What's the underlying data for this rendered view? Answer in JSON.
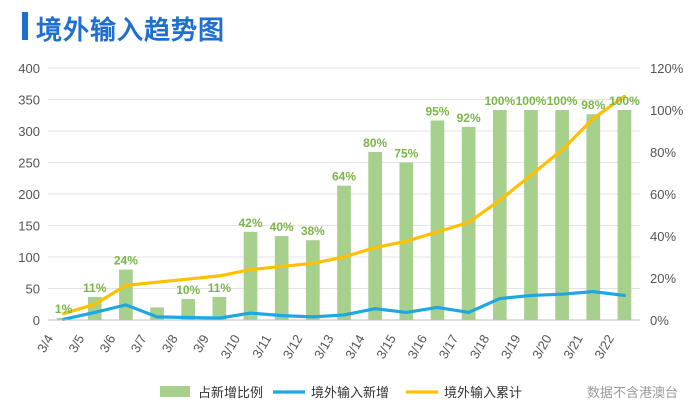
{
  "header": {
    "title": "境外输入趋势图"
  },
  "footer": {
    "source": "数据不含港澳台"
  },
  "colors": {
    "bar": "#a8d08d",
    "line_new": "#1ea7e0",
    "line_cum": "#ffc000",
    "label": "#7ab648",
    "title": "#1f6fd1"
  },
  "chart_data": {
    "type": "bar",
    "title": "境外输入趋势图",
    "categories": [
      "3/4",
      "3/5",
      "3/6",
      "3/7",
      "3/8",
      "3/9",
      "3/10",
      "3/11",
      "3/12",
      "3/13",
      "3/14",
      "3/15",
      "3/16",
      "3/17",
      "3/18",
      "3/19",
      "3/20",
      "3/21",
      "3/22"
    ],
    "left_axis": {
      "ylim": [
        0,
        400
      ],
      "ticks": [
        "0",
        "50",
        "100",
        "150",
        "200",
        "250",
        "300",
        "350",
        "400"
      ]
    },
    "right_axis": {
      "ylim": [
        0,
        120
      ],
      "ticks": [
        "0%",
        "20%",
        "40%",
        "60%",
        "80%",
        "100%",
        "120%"
      ]
    },
    "series": [
      {
        "name": "占新增比例",
        "type": "bar",
        "axis": "right",
        "values": [
          1,
          11,
          24,
          6,
          10,
          11,
          42,
          40,
          38,
          64,
          80,
          75,
          95,
          92,
          100,
          100,
          100,
          98,
          100
        ],
        "labels": [
          "1%",
          "11%",
          "24%",
          "",
          "10%",
          "11%",
          "42%",
          "40%",
          "38%",
          "64%",
          "80%",
          "75%",
          "95%",
          "92%",
          "100%",
          "100%",
          "100%",
          "98%",
          "100%"
        ]
      },
      {
        "name": "境外输入新增",
        "type": "line",
        "axis": "left",
        "values": [
          1,
          12,
          24,
          5,
          4,
          3,
          11,
          7,
          5,
          8,
          18,
          12,
          20,
          12,
          34,
          39,
          41,
          45,
          39
        ]
      },
      {
        "name": "境外输入累计",
        "type": "line",
        "axis": "left",
        "values": [
          10,
          25,
          55,
          60,
          65,
          70,
          80,
          85,
          90,
          100,
          115,
          125,
          140,
          155,
          190,
          230,
          270,
          320,
          355
        ]
      }
    ],
    "legend": [
      "占新增比例",
      "境外输入新增",
      "境外输入累计"
    ],
    "legend_position": "bottom"
  }
}
